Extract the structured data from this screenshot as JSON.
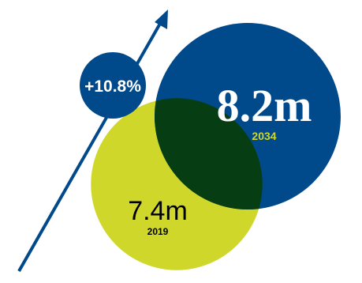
{
  "chart_data": {
    "type": "bubble",
    "series": [
      {
        "year": "2019",
        "value": 7.4,
        "label": "7.4m",
        "color": "#cfd72a"
      },
      {
        "year": "2034",
        "value": 8.2,
        "label": "8.2m",
        "color": "#004a8c"
      }
    ],
    "overlap_color": "#063d12",
    "growth": {
      "label": "+10.8%",
      "color": "#004a8c",
      "text_color": "#ffffff"
    },
    "arrow_color": "#004a8c",
    "year_color_on_dark": "#cfd72a",
    "year_color_on_light": "#000000"
  }
}
